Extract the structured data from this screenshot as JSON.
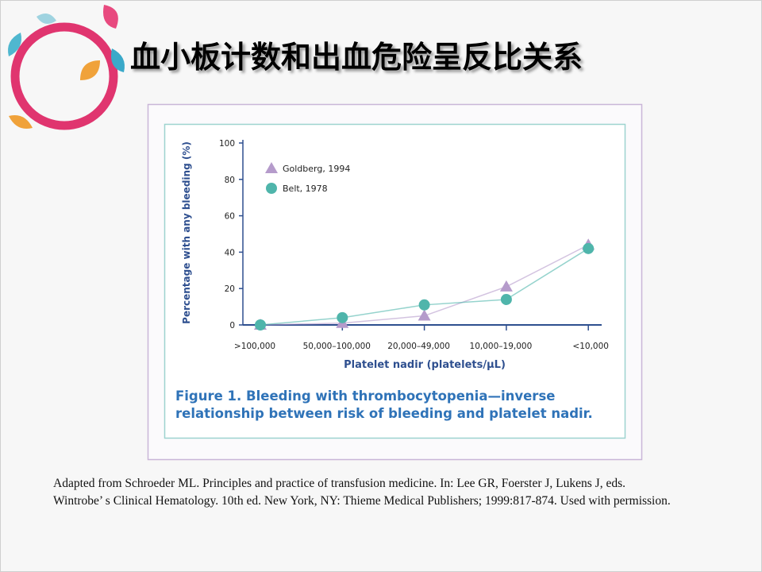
{
  "slide_title": "血小板计数和出血危险呈反比关系",
  "chart_data": {
    "type": "line",
    "caption": "Figure 1. Bleeding with thrombocytopenia—inverse relationship between risk of bleeding and platelet nadir.",
    "x_label": "Platelet nadir (platelets/µL)",
    "y_label": "Percentage with any bleeding (%)",
    "categories": [
      ">100,000",
      "50,000–100,000",
      "20,000–49,000",
      "10,000–19,000",
      "<10,000"
    ],
    "series": [
      {
        "name": "Goldberg, 1994",
        "color": "#b59bcb",
        "marker": "triangle",
        "values": [
          0,
          1,
          5,
          21,
          44
        ]
      },
      {
        "name": "Belt, 1978",
        "color": "#4fb5ab",
        "marker": "circle",
        "values": [
          0,
          4,
          11,
          14,
          42
        ]
      }
    ],
    "ylim": [
      0,
      100
    ],
    "yticks": [
      0,
      20,
      40,
      60,
      80,
      100
    ],
    "legend": "upper left"
  },
  "source_note": [
    "Adapted from Schroeder ML. Principles and practice of transfusion medicine. In: Lee GR, Foerster J, Lukens J, eds.",
    "Wintrobe’ s Clinical Hematology. 10th ed. New York, NY: Thieme Medical Publishers; 1999:817-874. Used with permission."
  ]
}
